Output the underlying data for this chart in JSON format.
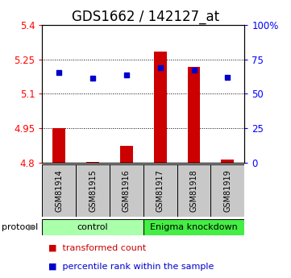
{
  "title": "GDS1662 / 142127_at",
  "samples": [
    "GSM81914",
    "GSM81915",
    "GSM81916",
    "GSM81917",
    "GSM81918",
    "GSM81919"
  ],
  "red_values": [
    4.952,
    4.803,
    4.872,
    5.283,
    5.218,
    4.815
  ],
  "blue_values": [
    5.192,
    5.17,
    5.182,
    5.213,
    5.205,
    5.172
  ],
  "ymin": 4.8,
  "ymax": 5.4,
  "yticks_left": [
    4.8,
    4.95,
    5.1,
    5.25,
    5.4
  ],
  "yticks_right": [
    0,
    25,
    50,
    75,
    100
  ],
  "yticks_right_labels": [
    "0",
    "25",
    "50",
    "75",
    "100%"
  ],
  "grid_lines": [
    4.95,
    5.1,
    5.25
  ],
  "protocol_labels": [
    "control",
    "Enigma knockdown"
  ],
  "protocol_ranges": [
    [
      0,
      3
    ],
    [
      3,
      6
    ]
  ],
  "protocol_colors_light": [
    "#AAFFAA",
    "#AAFFAA"
  ],
  "protocol_colors_dark": [
    "#AAFFAA",
    "#44EE44"
  ],
  "sample_box_color": "#C8C8C8",
  "red_color": "#CC0000",
  "blue_color": "#0000CC",
  "title_fontsize": 12,
  "tick_fontsize": 8.5,
  "label_fontsize": 8
}
